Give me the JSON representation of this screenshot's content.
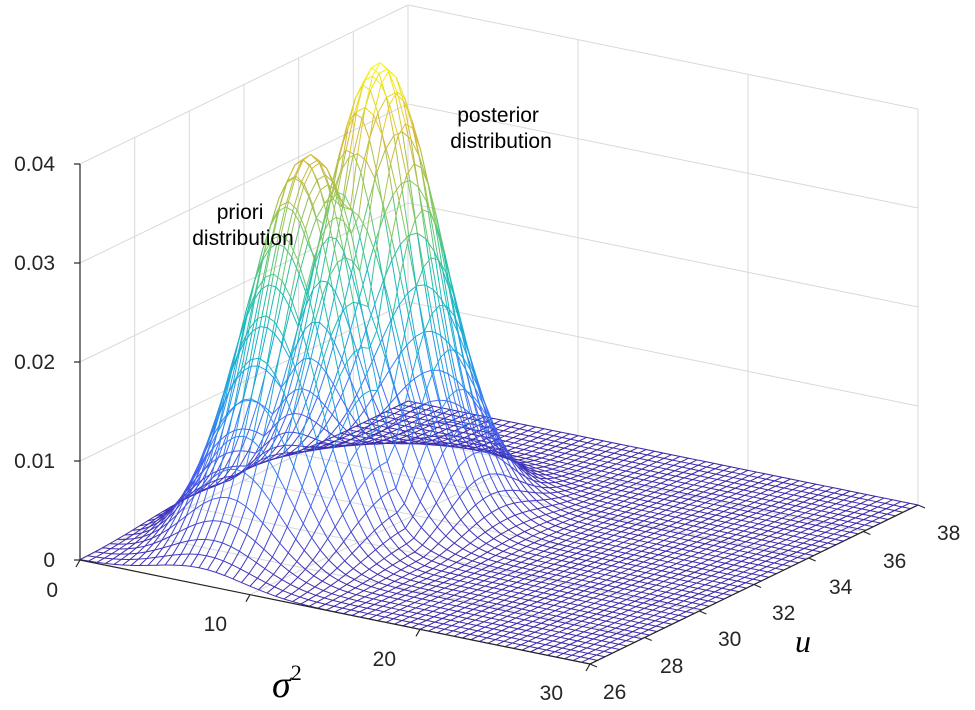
{
  "chart_data": {
    "type": "surface-mesh-3d",
    "title": "",
    "xlabel": "σ",
    "xlabel_superscript": "2",
    "ylabel": "u",
    "zlabel": "",
    "xlim": [
      0,
      30
    ],
    "ylim": [
      26,
      38
    ],
    "zlim": [
      0,
      0.04
    ],
    "x_ticks": [
      "0",
      "10",
      "20",
      "30"
    ],
    "y_ticks": [
      "26",
      "28",
      "30",
      "32",
      "34",
      "36",
      "38"
    ],
    "z_ticks": [
      "0",
      "0.01",
      "0.02",
      "0.03",
      "0.04"
    ],
    "grid": true,
    "colormap": [
      "#3e26a8",
      "#4667f9",
      "#1fa2e5",
      "#18bfb4",
      "#7fc961",
      "#d6b83a",
      "#f9fb15"
    ],
    "annotations": [
      {
        "lines": [
          "priori",
          "distribution"
        ],
        "target": "priori"
      },
      {
        "lines": [
          "posterior",
          "distribution"
        ],
        "target": "posterior"
      }
    ],
    "series": [
      {
        "key": "priori",
        "peak_sigma2": 7,
        "peak_u": 30,
        "peak_density": 0.038
      },
      {
        "key": "posterior",
        "peak_sigma2": 8,
        "peak_u": 32,
        "peak_density": 0.045
      }
    ]
  }
}
